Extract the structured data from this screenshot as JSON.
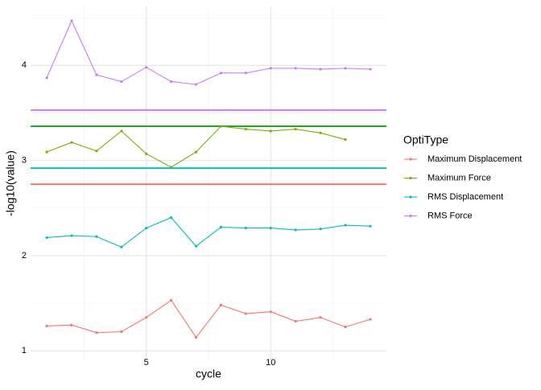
{
  "chart_data": {
    "type": "line",
    "x_label": "cycle",
    "y_label": "-log10(value)",
    "x": [
      1,
      2,
      3,
      4,
      5,
      6,
      7,
      8,
      9,
      10,
      11,
      12,
      13,
      14
    ],
    "series": [
      {
        "name": "Maximum Displacement",
        "color": "#F8766D",
        "values": [
          1.26,
          1.27,
          1.19,
          1.2,
          1.35,
          1.53,
          1.14,
          1.48,
          1.39,
          1.41,
          1.31,
          1.35,
          1.25,
          1.33
        ]
      },
      {
        "name": "Maximum Force",
        "color": "#7CAE00",
        "values": [
          3.09,
          3.19,
          3.1,
          3.31,
          3.07,
          2.93,
          3.09,
          3.36,
          3.33,
          3.31,
          3.33,
          3.29,
          3.22,
          null
        ]
      },
      {
        "name": "RMS Displacement",
        "color": "#00BFC4",
        "values": [
          2.19,
          2.21,
          2.2,
          2.09,
          2.29,
          2.4,
          2.1,
          2.3,
          2.29,
          2.29,
          2.27,
          2.28,
          2.32,
          2.31
        ]
      },
      {
        "name": "RMS Force",
        "color": "#C77CFF",
        "values": [
          3.87,
          4.47,
          3.9,
          3.83,
          3.98,
          3.83,
          3.8,
          3.92,
          3.92,
          3.97,
          3.97,
          3.96,
          3.97,
          3.96
        ]
      }
    ],
    "hlines": [
      {
        "value": 2.75,
        "color": "#F8766D"
      },
      {
        "value": 2.92,
        "color": "#00BFC4"
      },
      {
        "value": 3.36,
        "color": "#22A822"
      },
      {
        "value": 3.53,
        "color": "#C77CFF"
      }
    ],
    "legend_title": "OptiType",
    "xlim": [
      0.35,
      14.65
    ],
    "xticks": [
      5,
      10
    ],
    "xminor": [
      2.5,
      7.5,
      12.5
    ],
    "ylim": [
      0.9,
      4.62
    ],
    "yticks": [
      1,
      2,
      3,
      4
    ],
    "yminor": [
      1.5,
      2.5,
      3.5,
      4.5
    ],
    "grid": true
  }
}
